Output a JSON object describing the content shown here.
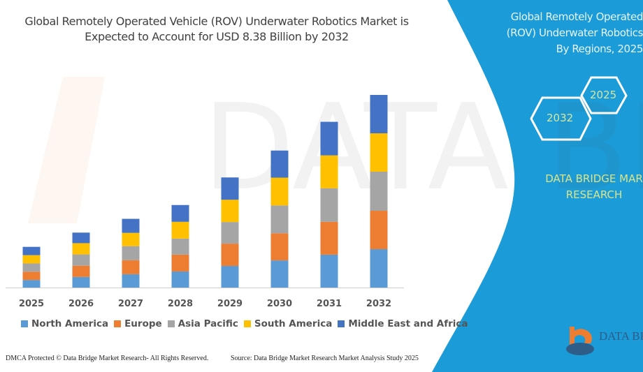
{
  "title": "Global Remotely Operated Vehicle (ROV) Underwater Robotics Market is Expected to Account for USD 8.38 Billion by 2032",
  "title_lines": [
    "Global Remotely Operated Vehicle (ROV) Underwater Robotics Market is",
    "Expected to Account for USD 8.38 Billion by 2032"
  ],
  "side_panel": {
    "title_lines": [
      "Global Remotely Operated",
      "(ROV) Underwater Robotics",
      "By Regions, 2025"
    ],
    "hex_years": [
      "2025",
      "2032"
    ],
    "brand_lines": [
      "DATA BRIDGE MAR",
      "RESEARCH"
    ],
    "logo_text": "DATA BRI",
    "background_color": "#1b9bd7"
  },
  "chart_data": {
    "type": "bar",
    "stacked": true,
    "title": "Global Remotely Operated Vehicle (ROV) Underwater Robotics Market is Expected to Account for USD 8.38 Billion by 2032",
    "xlabel": "",
    "ylabel": "",
    "categories": [
      "2025",
      "2026",
      "2027",
      "2028",
      "2029",
      "2030",
      "2031",
      "2032"
    ],
    "ylim": [
      0,
      8.38
    ],
    "grid": false,
    "legend_position": "bottom",
    "series": [
      {
        "name": "North America",
        "color": "#5b9bd5",
        "values": [
          0.33,
          0.46,
          0.58,
          0.7,
          0.94,
          1.18,
          1.43,
          1.67
        ]
      },
      {
        "name": "Europe",
        "color": "#ed7d31",
        "values": [
          0.36,
          0.49,
          0.61,
          0.73,
          0.97,
          1.18,
          1.43,
          1.67
        ]
      },
      {
        "name": "Asia Pacific",
        "color": "#a5a5a5",
        "values": [
          0.36,
          0.49,
          0.61,
          0.7,
          0.94,
          1.21,
          1.46,
          1.7
        ]
      },
      {
        "name": "South America",
        "color": "#ffc000",
        "values": [
          0.36,
          0.49,
          0.58,
          0.73,
          0.97,
          1.21,
          1.43,
          1.67
        ]
      },
      {
        "name": "Middle East and Africa",
        "color": "#4472c4",
        "values": [
          0.36,
          0.46,
          0.61,
          0.73,
          0.97,
          1.18,
          1.46,
          1.67
        ]
      }
    ]
  },
  "footer": {
    "left": "DMCA Protected © Data Bridge Market Research-  All Rights Reserved.",
    "right": "Source: Data Bridge Market Research  Market Analysis Study 2025"
  }
}
